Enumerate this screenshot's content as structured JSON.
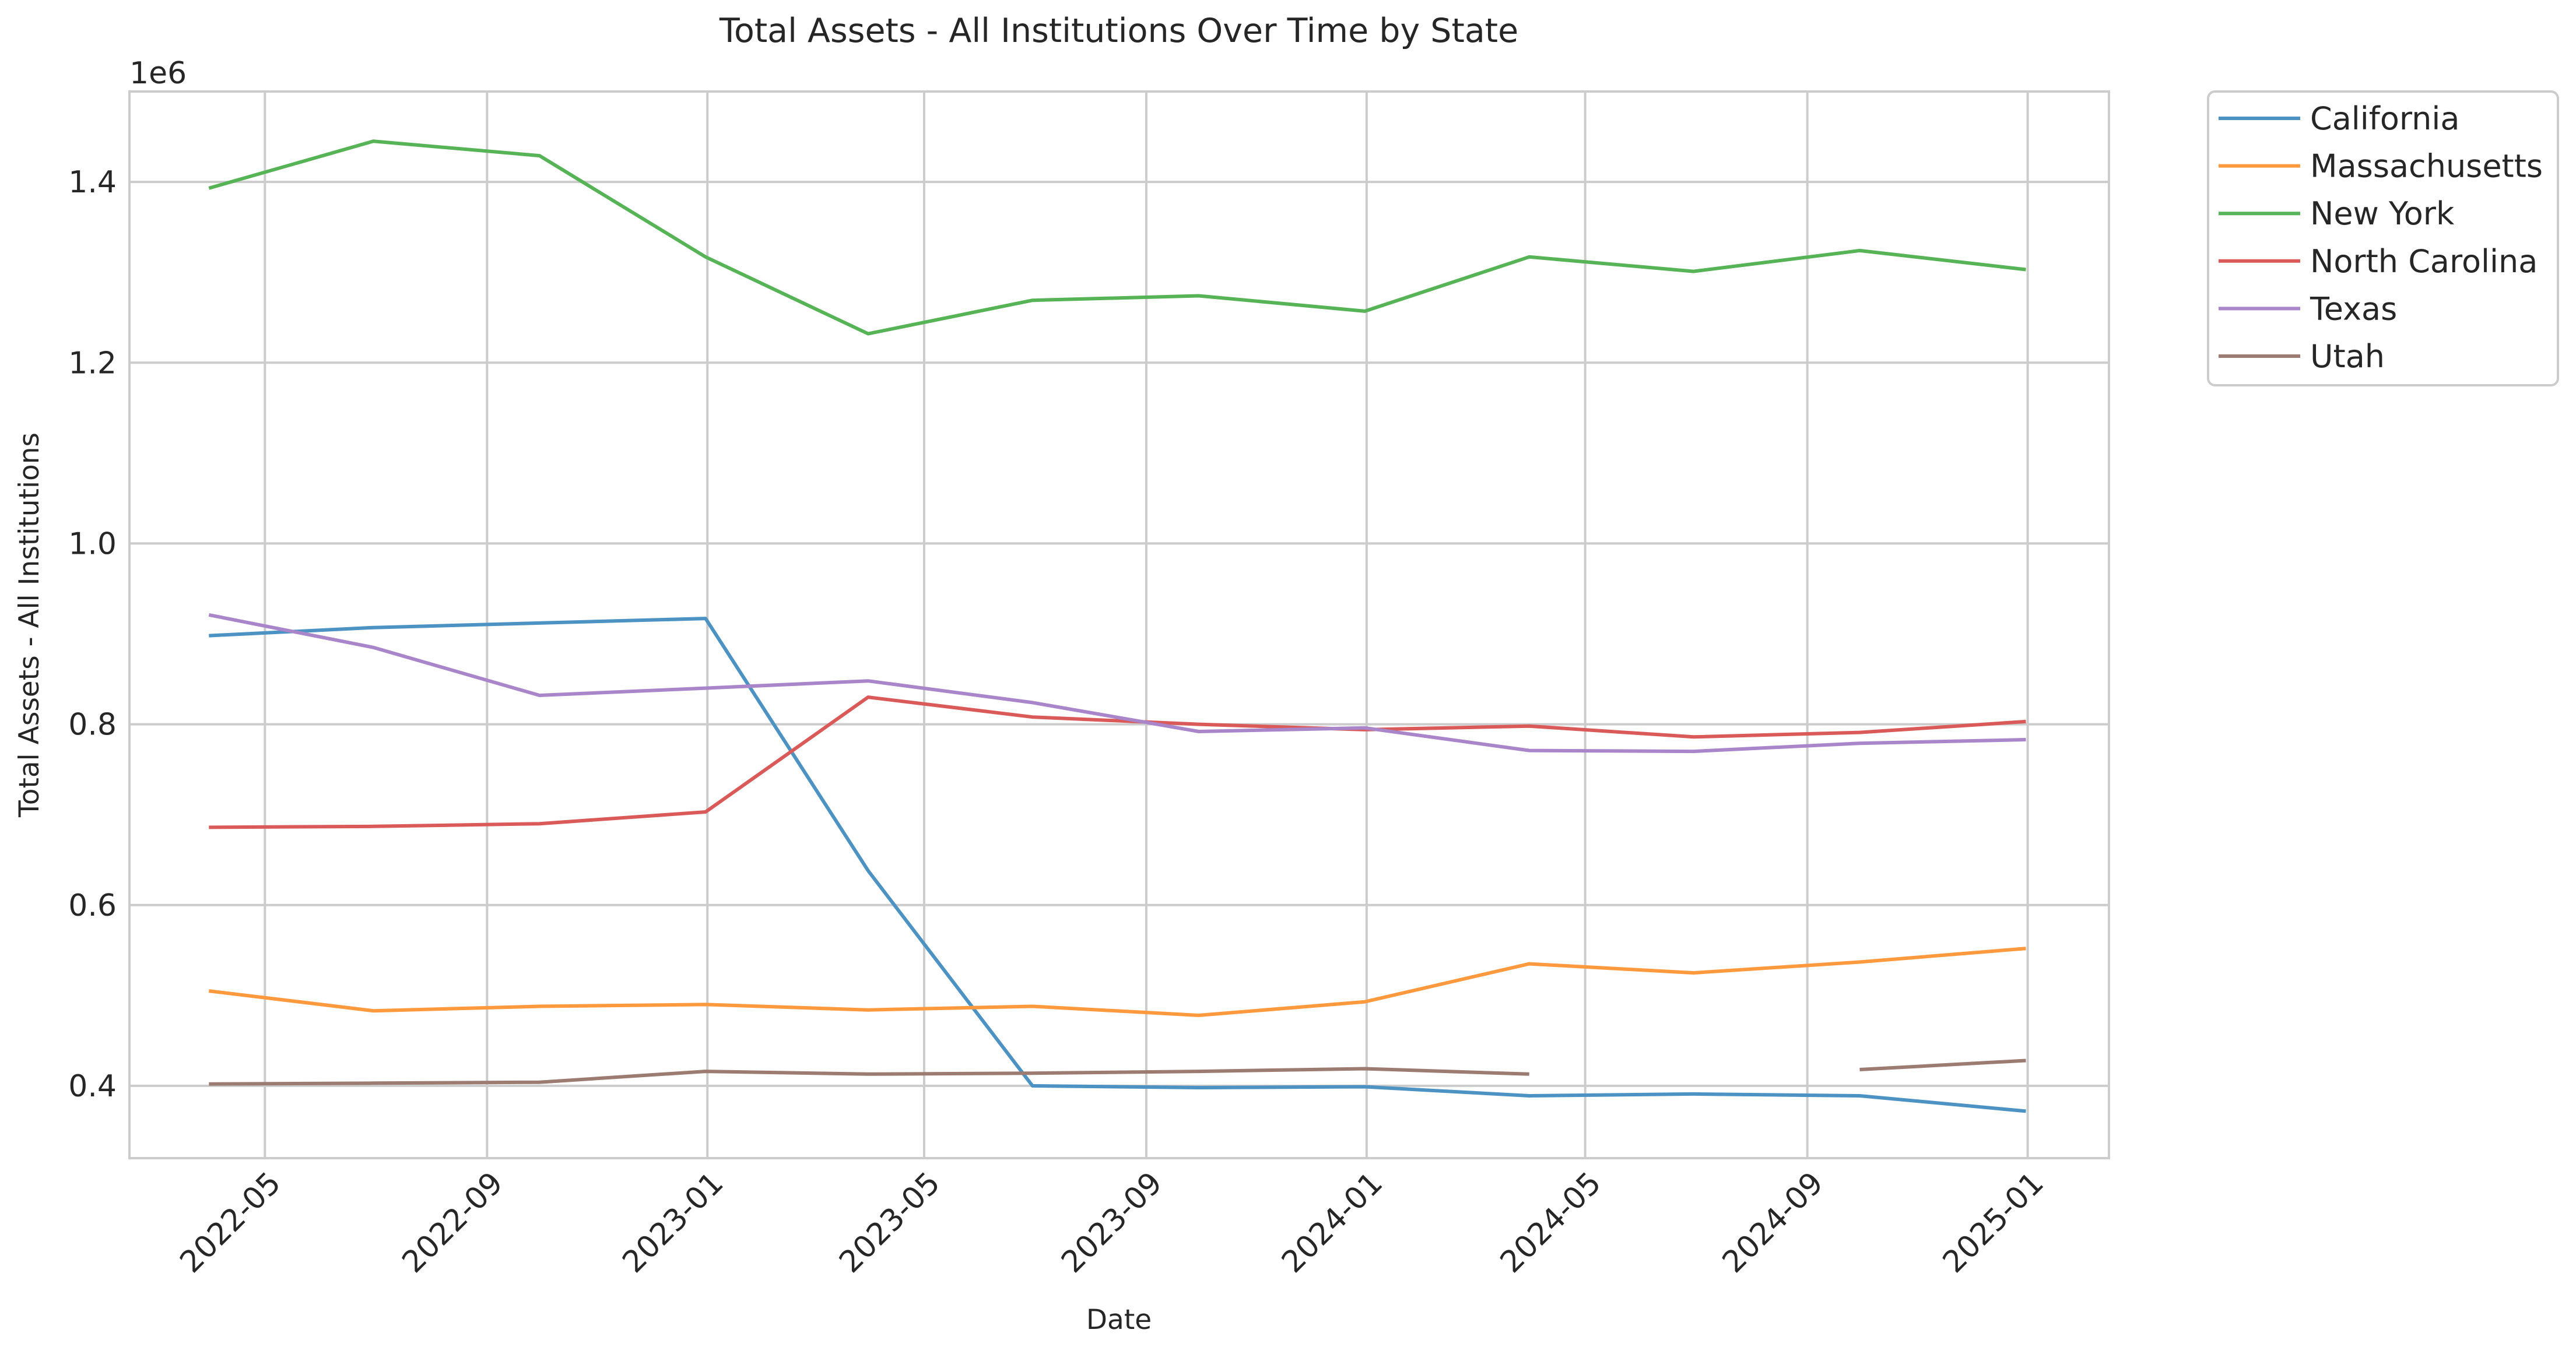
{
  "chart_data": {
    "type": "line",
    "title": "Total Assets - All Institutions Over Time by State",
    "xlabel": "Date",
    "ylabel": "Total Assets - All Institutions",
    "y_offset_label": "1e6",
    "y_scale_multiplier": 1000000,
    "ylim": [
      0.32,
      1.5
    ],
    "xlim": [
      "2022-02-15",
      "2025-02-15"
    ],
    "yticks": [
      0.4,
      0.6,
      0.8,
      1.0,
      1.2,
      1.4
    ],
    "ytick_labels": [
      "0.4",
      "0.6",
      "0.8",
      "1.0",
      "1.2",
      "1.4"
    ],
    "xticks": [
      "2022-05-01",
      "2022-09-01",
      "2023-01-01",
      "2023-05-01",
      "2023-09-01",
      "2024-01-01",
      "2024-05-01",
      "2024-09-01",
      "2025-01-01"
    ],
    "xtick_labels": [
      "2022-05",
      "2022-09",
      "2023-01",
      "2023-05",
      "2023-09",
      "2024-01",
      "2024-05",
      "2024-09",
      "2025-01"
    ],
    "grid": true,
    "legend_position": "outside top-right",
    "x": [
      "2022-03-31",
      "2022-06-30",
      "2022-09-30",
      "2022-12-31",
      "2023-03-31",
      "2023-06-30",
      "2023-09-30",
      "2023-12-31",
      "2024-03-31",
      "2024-06-30",
      "2024-09-30",
      "2024-12-31"
    ],
    "series": [
      {
        "name": "California",
        "color": "#4c92c3",
        "values": [
          0.898,
          0.907,
          0.912,
          0.917,
          0.638,
          0.4,
          0.398,
          0.399,
          0.389,
          0.391,
          0.389,
          0.372
        ]
      },
      {
        "name": "Massachusetts",
        "color": "#ff993e",
        "values": [
          0.505,
          0.483,
          0.488,
          0.49,
          0.484,
          0.488,
          0.478,
          0.493,
          0.535,
          0.525,
          0.537,
          0.552
        ]
      },
      {
        "name": "New York",
        "color": "#56b356",
        "values": [
          1.393,
          1.445,
          1.429,
          1.317,
          1.232,
          1.269,
          1.274,
          1.257,
          1.317,
          1.301,
          1.324,
          1.303
        ]
      },
      {
        "name": "North Carolina",
        "color": "#da5a5a",
        "values": [
          0.686,
          0.687,
          0.69,
          0.703,
          0.83,
          0.808,
          0.8,
          0.794,
          0.798,
          0.786,
          0.791,
          0.803
        ]
      },
      {
        "name": "Texas",
        "color": "#a985ca",
        "values": [
          0.921,
          0.885,
          0.832,
          0.84,
          0.848,
          0.824,
          0.792,
          0.796,
          0.771,
          0.77,
          0.779,
          0.783
        ]
      },
      {
        "name": "Utah",
        "color": "#9c7b71",
        "values": [
          0.402,
          0.403,
          0.404,
          0.416,
          0.413,
          0.414,
          0.416,
          0.419,
          0.413,
          null,
          0.418,
          0.428
        ]
      }
    ]
  }
}
